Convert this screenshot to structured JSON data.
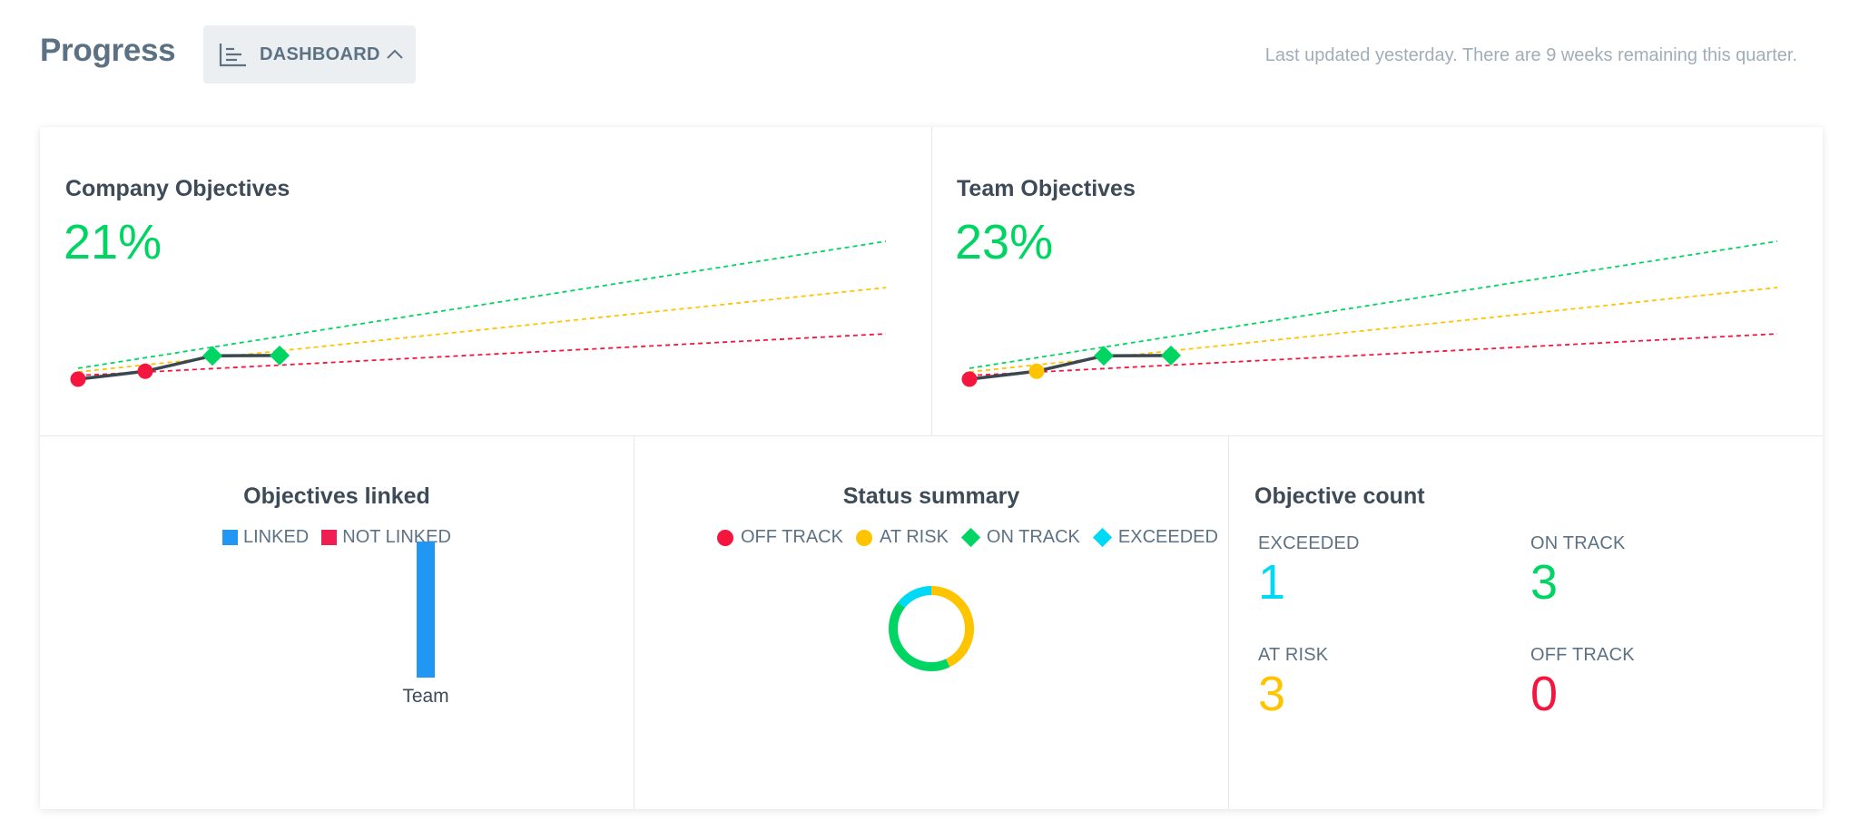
{
  "header": {
    "title": "Progress",
    "dashboard_label": "DASHBOARD",
    "updated_text": "Last updated yesterday. There are 9 weeks remaining this quarter."
  },
  "colors": {
    "off_track": "#f5163f",
    "at_risk": "#ffc400",
    "on_track": "#00d563",
    "exceeded": "#00d9f5",
    "linked": "#2196f3",
    "not_linked": "#ee1d52",
    "progress_line": "#3a4651"
  },
  "company": {
    "title": "Company Objectives",
    "percent": "21%"
  },
  "team": {
    "title": "Team Objectives",
    "percent": "23%"
  },
  "linked": {
    "title": "Objectives linked",
    "legend_linked": "LINKED",
    "legend_not_linked": "NOT LINKED"
  },
  "status": {
    "title": "Status summary",
    "legend_off_track": "OFF TRACK",
    "legend_at_risk": "AT RISK",
    "legend_on_track": "ON TRACK",
    "legend_exceeded": "EXCEEDED"
  },
  "counts": {
    "title": "Objective count",
    "exceeded_label": "EXCEEDED",
    "exceeded_value": "1",
    "on_track_label": "ON TRACK",
    "on_track_value": "3",
    "at_risk_label": "AT RISK",
    "at_risk_value": "3",
    "off_track_label": "OFF TRACK",
    "off_track_value": "0"
  },
  "chart_data": [
    {
      "type": "line",
      "title": "Company Objectives",
      "series": [
        {
          "status": [
            "off_track",
            "off_track",
            "on_track",
            "on_track"
          ],
          "values": [
            0,
            1,
            3,
            3
          ]
        }
      ]
    },
    {
      "type": "line",
      "title": "Team Objectives",
      "series": [
        {
          "status": [
            "off_track",
            "at_risk",
            "on_track",
            "on_track"
          ],
          "values": [
            0,
            1,
            3,
            3
          ]
        }
      ]
    },
    {
      "type": "bar",
      "title": "Objectives linked",
      "categories": [
        "Team"
      ],
      "series": [
        {
          "name": "LINKED",
          "values": [
            7
          ]
        },
        {
          "name": "NOT LINKED",
          "values": [
            0
          ]
        }
      ]
    },
    {
      "type": "pie",
      "title": "Status summary",
      "labels": [
        "OFF TRACK",
        "AT RISK",
        "ON TRACK",
        "EXCEEDED"
      ],
      "values": [
        0,
        3,
        3,
        1
      ]
    }
  ]
}
